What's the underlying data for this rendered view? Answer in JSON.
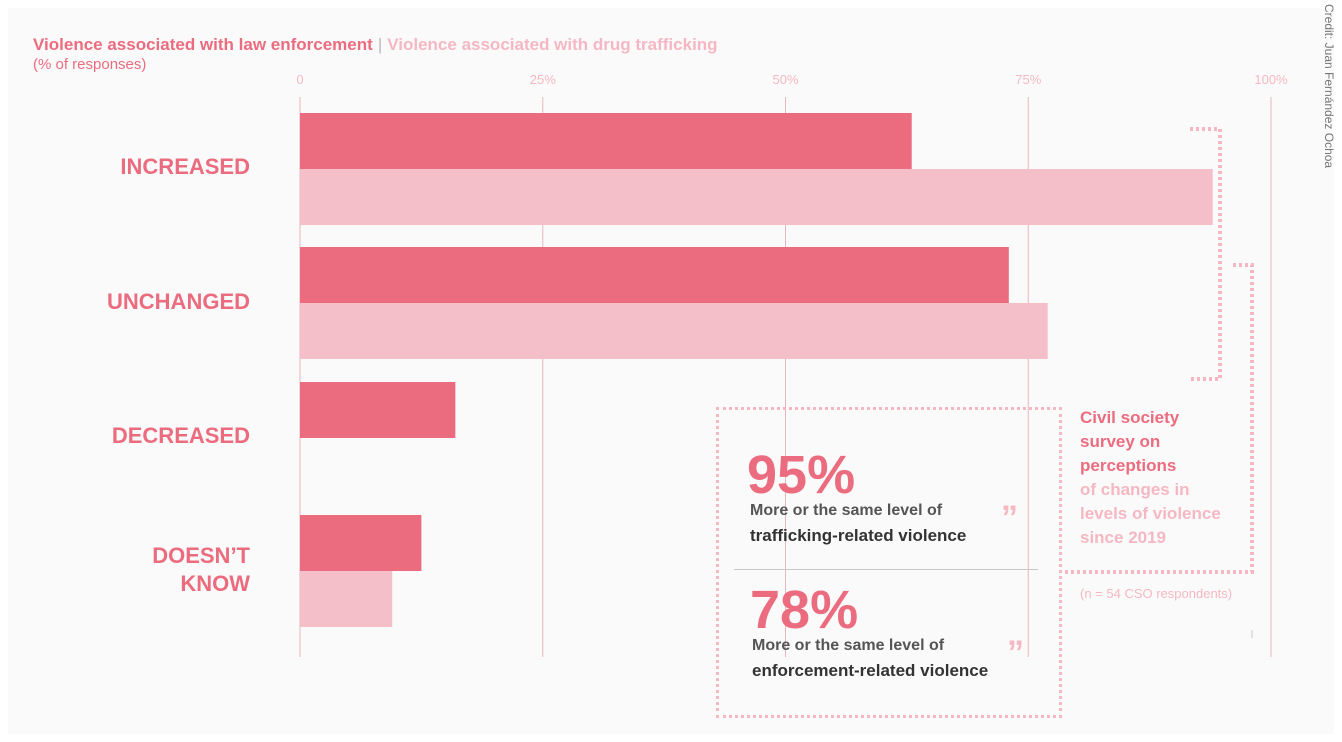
{
  "legend": {
    "series1": "Violence associated with law enforcement",
    "separator": "|",
    "series2": "Violence associated with drug trafficking"
  },
  "subtitle": "(% of responses)",
  "colors": {
    "series1": "#ec6c7f",
    "series2": "#f5bfc9",
    "accent_light": "#f5b8c3"
  },
  "chart_data": {
    "type": "bar",
    "orientation": "horizontal",
    "categories": [
      "INCREASED",
      "UNCHANGED",
      "DECREASED",
      "DOESN’T\nKNOW"
    ],
    "series": [
      {
        "name": "Violence associated with law enforcement",
        "values": [
          63,
          73,
          16,
          12.5
        ]
      },
      {
        "name": "Violence associated with drug trafficking",
        "values": [
          94,
          77,
          null,
          9.5
        ]
      }
    ],
    "x_ticks": [
      "0",
      "25%",
      "50%",
      "75%",
      "100%"
    ],
    "xlim": [
      0,
      100
    ],
    "grid": true,
    "legend_placement": "top-left"
  },
  "callouts": [
    {
      "value": "95%",
      "line1": "More or the same level of",
      "line2": "trafficking-related violence"
    },
    {
      "value": "78%",
      "line1": "More or the same level of",
      "line2": "enforcement-related violence"
    }
  ],
  "quote_glyph": "”",
  "survey": {
    "dark": [
      "Civil society",
      "survey on",
      "perceptions"
    ],
    "light": [
      "of changes in",
      "levels of violence",
      "since 2019"
    ]
  },
  "note": "(n = 54 CSO respondents)",
  "credit": "Credit: Juan Fernández Ochoa"
}
